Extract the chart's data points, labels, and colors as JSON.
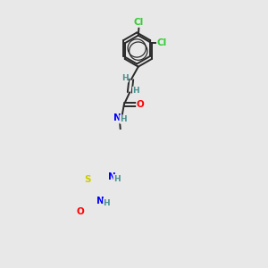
{
  "background_color": "#e8e8e8",
  "bond_color": "#2a2a2a",
  "atom_colors": {
    "Cl": "#33cc33",
    "O": "#ff0000",
    "N": "#0000ff",
    "S": "#cccc00",
    "H": "#4a9090"
  },
  "bond_width": 1.4,
  "dbo": 0.018,
  "fs": 7.5,
  "fsh": 6.5
}
